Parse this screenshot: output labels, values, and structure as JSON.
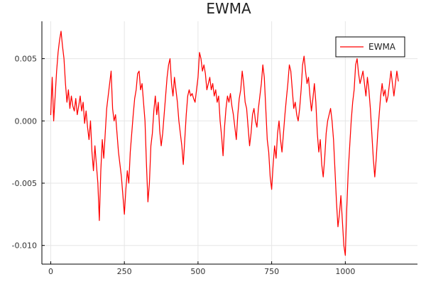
{
  "chart_data": {
    "type": "line",
    "title": "EWMA",
    "xlabel": "",
    "ylabel": "",
    "xlim": [
      -30,
      1245
    ],
    "ylim": [
      -0.0115,
      0.008
    ],
    "x_ticks": [
      0,
      250,
      500,
      750,
      1000
    ],
    "x_tick_labels": [
      "0",
      "250",
      "500",
      "750",
      "1000"
    ],
    "y_ticks": [
      -0.01,
      -0.005,
      0.0,
      0.005
    ],
    "y_tick_labels": [
      "-0.010",
      "-0.005",
      "0.000",
      "0.005"
    ],
    "grid": true,
    "legend_position": "top-right",
    "series": [
      {
        "name": "EWMA",
        "color": "#ff0000",
        "anchors": [
          [
            0,
            0.0005
          ],
          [
            5,
            0.0035
          ],
          [
            10,
            0.0
          ],
          [
            15,
            0.002
          ],
          [
            20,
            0.004
          ],
          [
            25,
            0.0055
          ],
          [
            30,
            0.0065
          ],
          [
            35,
            0.0072
          ],
          [
            40,
            0.006
          ],
          [
            45,
            0.005
          ],
          [
            50,
            0.003
          ],
          [
            55,
            0.0015
          ],
          [
            60,
            0.0025
          ],
          [
            65,
            0.001
          ],
          [
            70,
            0.002
          ],
          [
            75,
            0.0012
          ],
          [
            80,
            0.0008
          ],
          [
            85,
            0.0018
          ],
          [
            90,
            0.0005
          ],
          [
            95,
            0.0012
          ],
          [
            100,
            0.002
          ],
          [
            105,
            0.0008
          ],
          [
            110,
            0.0015
          ],
          [
            115,
            -0.0002
          ],
          [
            120,
            0.0008
          ],
          [
            125,
            -0.0005
          ],
          [
            130,
            -0.0015
          ],
          [
            135,
            0.0
          ],
          [
            140,
            -0.0025
          ],
          [
            145,
            -0.004
          ],
          [
            150,
            -0.002
          ],
          [
            155,
            -0.0035
          ],
          [
            160,
            -0.005
          ],
          [
            165,
            -0.008
          ],
          [
            170,
            -0.004
          ],
          [
            175,
            -0.0015
          ],
          [
            180,
            -0.003
          ],
          [
            185,
            -0.001
          ],
          [
            190,
            0.001
          ],
          [
            195,
            0.002
          ],
          [
            200,
            0.003
          ],
          [
            205,
            0.004
          ],
          [
            210,
            0.001
          ],
          [
            215,
            0.0
          ],
          [
            220,
            0.0005
          ],
          [
            225,
            -0.001
          ],
          [
            230,
            -0.0025
          ],
          [
            235,
            -0.0035
          ],
          [
            240,
            -0.0045
          ],
          [
            245,
            -0.006
          ],
          [
            250,
            -0.0075
          ],
          [
            255,
            -0.0055
          ],
          [
            260,
            -0.004
          ],
          [
            265,
            -0.005
          ],
          [
            270,
            -0.0025
          ],
          [
            275,
            -0.001
          ],
          [
            280,
            0.0005
          ],
          [
            285,
            0.0018
          ],
          [
            290,
            0.0025
          ],
          [
            295,
            0.0038
          ],
          [
            300,
            0.004
          ],
          [
            305,
            0.0025
          ],
          [
            310,
            0.003
          ],
          [
            315,
            0.0015
          ],
          [
            320,
            0.0
          ],
          [
            325,
            -0.0035
          ],
          [
            330,
            -0.0065
          ],
          [
            335,
            -0.005
          ],
          [
            340,
            -0.002
          ],
          [
            345,
            -0.001
          ],
          [
            350,
            0.0008
          ],
          [
            355,
            0.002
          ],
          [
            360,
            0.0005
          ],
          [
            365,
            0.0015
          ],
          [
            370,
            -0.0008
          ],
          [
            375,
            -0.002
          ],
          [
            380,
            -0.001
          ],
          [
            385,
            0.0005
          ],
          [
            390,
            0.002
          ],
          [
            395,
            0.0035
          ],
          [
            400,
            0.0045
          ],
          [
            405,
            0.005
          ],
          [
            410,
            0.003
          ],
          [
            415,
            0.002
          ],
          [
            420,
            0.0035
          ],
          [
            425,
            0.0025
          ],
          [
            430,
            0.0015
          ],
          [
            435,
            0.0
          ],
          [
            440,
            -0.001
          ],
          [
            445,
            -0.002
          ],
          [
            450,
            -0.0035
          ],
          [
            455,
            -0.0015
          ],
          [
            460,
            0.0005
          ],
          [
            465,
            0.002
          ],
          [
            470,
            0.0025
          ],
          [
            475,
            0.002
          ],
          [
            480,
            0.0022
          ],
          [
            485,
            0.0018
          ],
          [
            490,
            0.0015
          ],
          [
            495,
            0.0025
          ],
          [
            500,
            0.0035
          ],
          [
            505,
            0.0055
          ],
          [
            510,
            0.005
          ],
          [
            515,
            0.004
          ],
          [
            520,
            0.0045
          ],
          [
            525,
            0.0038
          ],
          [
            530,
            0.0025
          ],
          [
            535,
            0.003
          ],
          [
            540,
            0.0035
          ],
          [
            545,
            0.0025
          ],
          [
            550,
            0.003
          ],
          [
            555,
            0.002
          ],
          [
            560,
            0.0025
          ],
          [
            565,
            0.0015
          ],
          [
            570,
            0.002
          ],
          [
            575,
            0.0
          ],
          [
            580,
            -0.0012
          ],
          [
            585,
            -0.0028
          ],
          [
            590,
            -0.0005
          ],
          [
            595,
            0.001
          ],
          [
            600,
            0.002
          ],
          [
            605,
            0.0015
          ],
          [
            610,
            0.0022
          ],
          [
            615,
            0.0012
          ],
          [
            620,
            0.0005
          ],
          [
            625,
            -0.0005
          ],
          [
            630,
            -0.0015
          ],
          [
            635,
            0.0005
          ],
          [
            640,
            0.0018
          ],
          [
            645,
            0.0025
          ],
          [
            650,
            0.004
          ],
          [
            655,
            0.003
          ],
          [
            660,
            0.0015
          ],
          [
            665,
            0.001
          ],
          [
            670,
            -0.0005
          ],
          [
            675,
            -0.002
          ],
          [
            680,
            -0.001
          ],
          [
            685,
            0.0005
          ],
          [
            690,
            0.001
          ],
          [
            695,
            0.0
          ],
          [
            700,
            -0.0005
          ],
          [
            705,
            0.001
          ],
          [
            710,
            0.002
          ],
          [
            715,
            0.003
          ],
          [
            720,
            0.0045
          ],
          [
            725,
            0.0035
          ],
          [
            730,
            0.001
          ],
          [
            735,
            -0.0015
          ],
          [
            740,
            -0.0025
          ],
          [
            745,
            -0.0045
          ],
          [
            750,
            -0.0055
          ],
          [
            755,
            -0.0035
          ],
          [
            760,
            -0.002
          ],
          [
            765,
            -0.003
          ],
          [
            770,
            -0.001
          ],
          [
            775,
            0.0
          ],
          [
            780,
            -0.0015
          ],
          [
            785,
            -0.0025
          ],
          [
            790,
            -0.001
          ],
          [
            795,
            0.0005
          ],
          [
            800,
            0.0018
          ],
          [
            805,
            0.003
          ],
          [
            810,
            0.0045
          ],
          [
            815,
            0.004
          ],
          [
            820,
            0.0025
          ],
          [
            825,
            0.001
          ],
          [
            830,
            0.0015
          ],
          [
            835,
            0.0005
          ],
          [
            840,
            0.0
          ],
          [
            845,
            0.001
          ],
          [
            850,
            0.0025
          ],
          [
            855,
            0.0045
          ],
          [
            860,
            0.0052
          ],
          [
            865,
            0.004
          ],
          [
            870,
            0.003
          ],
          [
            875,
            0.0035
          ],
          [
            880,
            0.002
          ],
          [
            885,
            0.0008
          ],
          [
            890,
            0.0018
          ],
          [
            895,
            0.003
          ],
          [
            900,
            0.0015
          ],
          [
            905,
            -0.001
          ],
          [
            910,
            -0.0025
          ],
          [
            915,
            -0.0015
          ],
          [
            920,
            -0.0035
          ],
          [
            925,
            -0.0045
          ],
          [
            930,
            -0.003
          ],
          [
            935,
            -0.001
          ],
          [
            940,
            0.0
          ],
          [
            945,
            0.0005
          ],
          [
            950,
            0.001
          ],
          [
            955,
            0.0
          ],
          [
            960,
            -0.0015
          ],
          [
            965,
            -0.004
          ],
          [
            970,
            -0.0065
          ],
          [
            975,
            -0.0085
          ],
          [
            980,
            -0.0075
          ],
          [
            985,
            -0.006
          ],
          [
            990,
            -0.008
          ],
          [
            995,
            -0.01
          ],
          [
            1000,
            -0.0108
          ],
          [
            1005,
            -0.007
          ],
          [
            1010,
            -0.004
          ],
          [
            1015,
            -0.002
          ],
          [
            1020,
            0.0
          ],
          [
            1025,
            0.0015
          ],
          [
            1030,
            0.0025
          ],
          [
            1035,
            0.0045
          ],
          [
            1040,
            0.005
          ],
          [
            1045,
            0.0038
          ],
          [
            1050,
            0.003
          ],
          [
            1055,
            0.0035
          ],
          [
            1060,
            0.004
          ],
          [
            1065,
            0.003
          ],
          [
            1070,
            0.002
          ],
          [
            1075,
            0.0035
          ],
          [
            1080,
            0.0025
          ],
          [
            1085,
            0.001
          ],
          [
            1090,
            -0.001
          ],
          [
            1095,
            -0.003
          ],
          [
            1100,
            -0.0045
          ],
          [
            1105,
            -0.003
          ],
          [
            1110,
            -0.001
          ],
          [
            1115,
            0.0005
          ],
          [
            1120,
            0.002
          ],
          [
            1125,
            0.003
          ],
          [
            1130,
            0.002
          ],
          [
            1135,
            0.0025
          ],
          [
            1140,
            0.0015
          ],
          [
            1145,
            0.002
          ],
          [
            1150,
            0.003
          ],
          [
            1155,
            0.004
          ],
          [
            1160,
            0.003
          ],
          [
            1165,
            0.002
          ],
          [
            1170,
            0.003
          ],
          [
            1175,
            0.004
          ],
          [
            1180,
            0.0032
          ]
        ]
      }
    ]
  }
}
